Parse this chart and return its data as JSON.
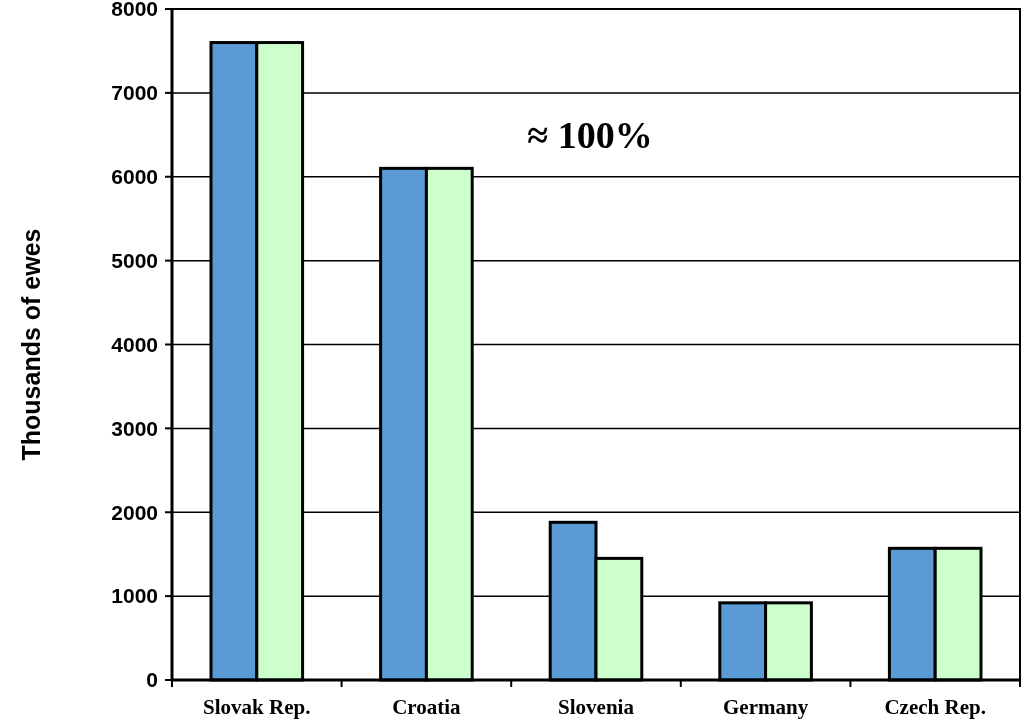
{
  "chart_data": {
    "type": "bar",
    "ylabel": "Thousands of ewes",
    "categories": [
      "Slovak Rep.",
      "Croatia",
      "Slovenia",
      "Germany",
      "Czech Rep."
    ],
    "series": [
      {
        "color": "#5b9bd5",
        "values": [
          7600,
          6100,
          1880,
          920,
          1570
        ]
      },
      {
        "color": "#ccffcc",
        "values": [
          7600,
          6100,
          1450,
          920,
          1570
        ]
      }
    ],
    "ylim": [
      0,
      8000
    ],
    "yticks": [
      0,
      1000,
      2000,
      3000,
      4000,
      5000,
      6000,
      7000,
      8000
    ],
    "grid": "y",
    "annotations": [
      "≈ 100%"
    ]
  }
}
